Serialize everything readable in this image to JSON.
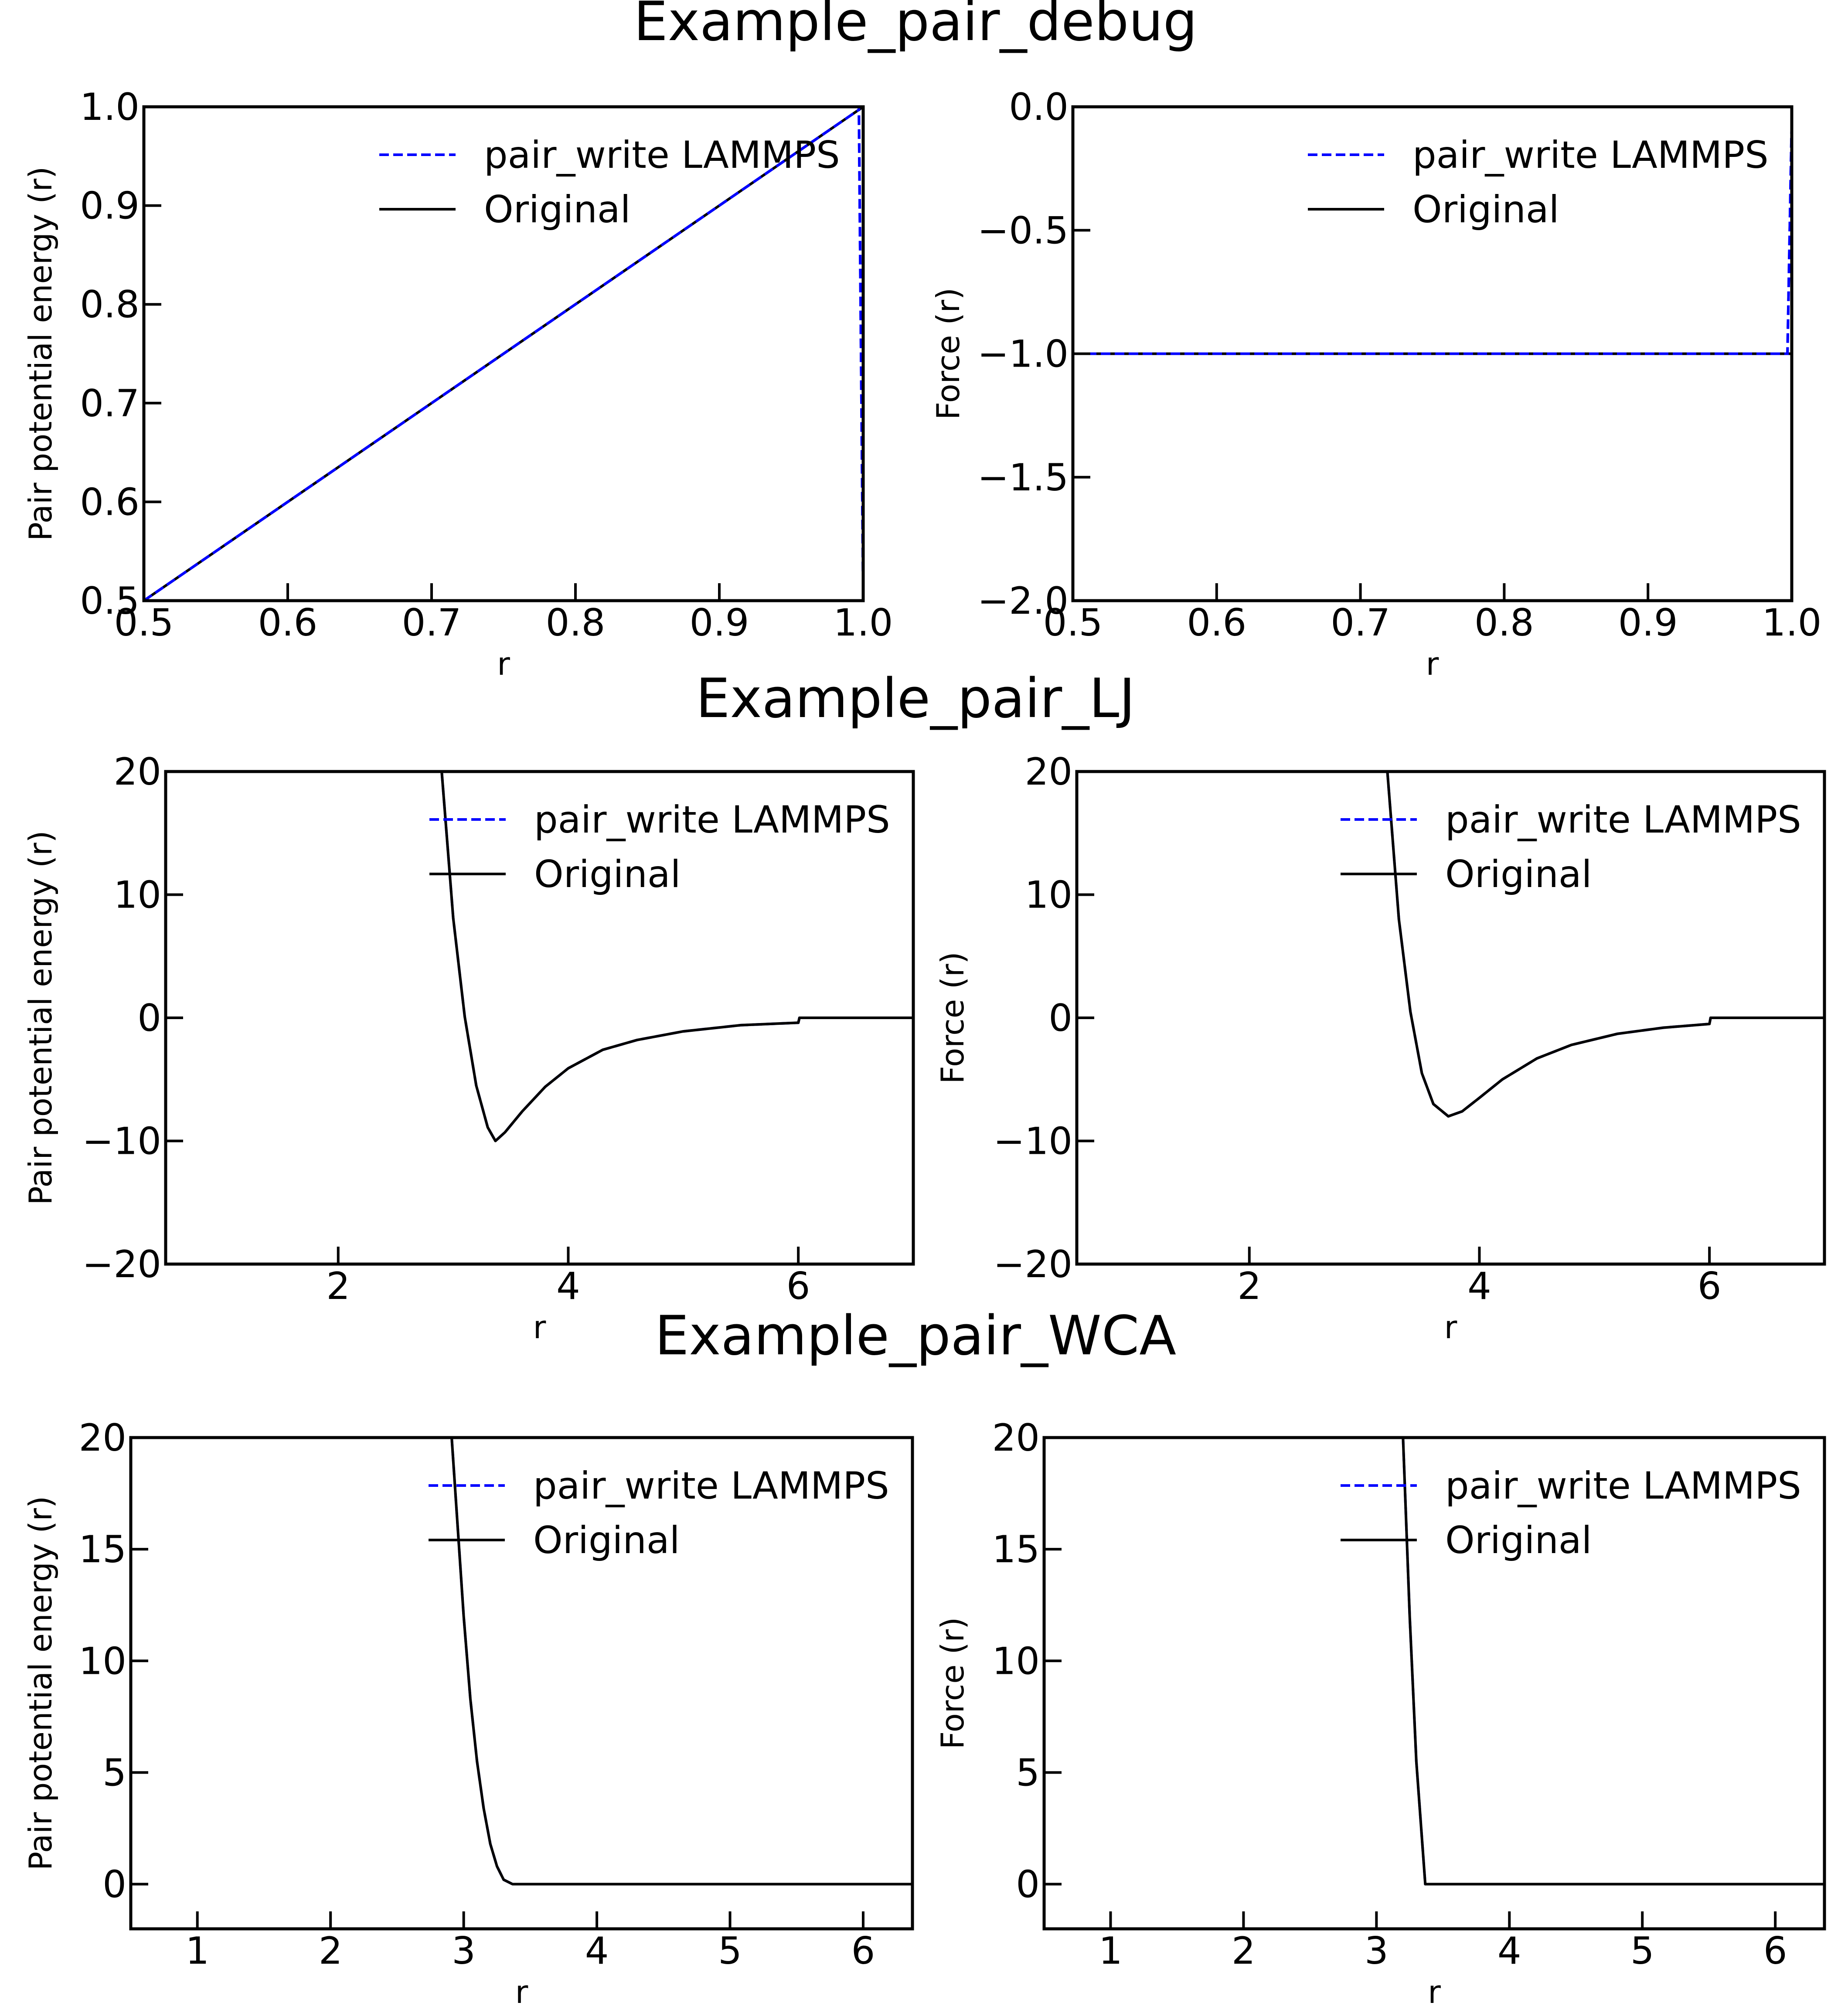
{
  "sections": [
    {
      "title": "Example_pair_debug"
    },
    {
      "title": "Example_pair_LJ"
    },
    {
      "title": "Example_pair_WCA"
    }
  ],
  "colors": {
    "lammps": "#0000ff",
    "original": "#000000",
    "axes": "#000000",
    "background": "#ffffff"
  },
  "chart_data": [
    {
      "id": "debug-energy",
      "type": "line",
      "xlabel": "r",
      "ylabel": "Pair potential energy (r)",
      "xlim": [
        0.5,
        1.0
      ],
      "ylim": [
        0.5,
        1.0
      ],
      "xticks": [
        0.5,
        0.6,
        0.7,
        0.8,
        0.9,
        1.0
      ],
      "xtick_labels": [
        "0.5",
        "0.6",
        "0.7",
        "0.8",
        "0.9",
        "1.0"
      ],
      "yticks": [
        0.5,
        0.6,
        0.7,
        0.8,
        0.9,
        1.0
      ],
      "ytick_labels": [
        "0.5",
        "0.6",
        "0.7",
        "0.8",
        "0.9",
        "1.0"
      ],
      "legend": "top-right",
      "grid": false,
      "series": [
        {
          "name": "pair_write LAMMPS",
          "style": "dashed",
          "color": "#0000ff",
          "x": [
            0.5,
            0.6,
            0.7,
            0.8,
            0.9,
            0.997,
            0.997,
            1.0
          ],
          "y": [
            0.5,
            0.6,
            0.7,
            0.8,
            0.9,
            0.997,
            1.0,
            0.5
          ]
        },
        {
          "name": "Original",
          "style": "solid",
          "color": "#000000",
          "x": [
            0.5,
            1.0,
            1.0
          ],
          "y": [
            0.5,
            1.0,
            0.5
          ]
        }
      ]
    },
    {
      "id": "debug-force",
      "type": "line",
      "xlabel": "r",
      "ylabel": "Force (r)",
      "xlim": [
        0.5,
        1.0
      ],
      "ylim": [
        -2.0,
        0.0
      ],
      "xticks": [
        0.5,
        0.6,
        0.7,
        0.8,
        0.9,
        1.0
      ],
      "xtick_labels": [
        "0.5",
        "0.6",
        "0.7",
        "0.8",
        "0.9",
        "1.0"
      ],
      "yticks": [
        -2.0,
        -1.5,
        -1.0,
        -0.5,
        0.0
      ],
      "ytick_labels": [
        "−2.0",
        "−1.5",
        "−1.0",
        "−0.5",
        "0.0"
      ],
      "legend": "top-right",
      "grid": false,
      "series": [
        {
          "name": "pair_write LAMMPS",
          "style": "dashed",
          "color": "#0000ff",
          "x": [
            0.5,
            0.997,
            1.0
          ],
          "y": [
            -1.0,
            -1.0,
            -0.05
          ]
        },
        {
          "name": "Original",
          "style": "solid",
          "color": "#000000",
          "x": [
            0.5,
            1.0
          ],
          "y": [
            -1.0,
            -1.0
          ]
        }
      ]
    },
    {
      "id": "lj-energy",
      "type": "line",
      "xlabel": "r",
      "ylabel": "Pair potential energy (r)",
      "xlim": [
        0.5,
        7.0
      ],
      "ylim": [
        -20,
        20
      ],
      "xticks": [
        2,
        4,
        6
      ],
      "xtick_labels": [
        "2",
        "4",
        "6"
      ],
      "yticks": [
        -20,
        -10,
        0,
        10,
        20
      ],
      "ytick_labels": [
        "−20",
        "−10",
        "0",
        "10",
        "20"
      ],
      "legend": "top-right",
      "grid": false,
      "series": [
        {
          "name": "pair_write LAMMPS",
          "style": "dashed",
          "color": "#0000ff",
          "x": [
            2.9,
            3.0,
            3.1,
            3.2,
            3.3,
            3.367,
            3.45,
            3.6,
            3.8,
            4.0,
            4.3,
            4.6,
            5.0,
            5.5,
            6.0,
            6.01,
            6.1,
            7.0
          ],
          "y": [
            20.0,
            8.1,
            0.1,
            -5.5,
            -8.9,
            -10.0,
            -9.3,
            -7.6,
            -5.6,
            -4.1,
            -2.6,
            -1.8,
            -1.1,
            -0.6,
            -0.4,
            0.0,
            0.0,
            0.0
          ]
        },
        {
          "name": "Original",
          "style": "solid",
          "color": "#000000",
          "x": [
            2.9,
            3.0,
            3.1,
            3.2,
            3.3,
            3.367,
            3.45,
            3.6,
            3.8,
            4.0,
            4.3,
            4.6,
            5.0,
            5.5,
            6.0,
            6.01,
            6.1,
            7.0
          ],
          "y": [
            20.0,
            8.1,
            0.1,
            -5.5,
            -8.9,
            -10.0,
            -9.3,
            -7.6,
            -5.6,
            -4.1,
            -2.6,
            -1.8,
            -1.1,
            -0.6,
            -0.4,
            0.0,
            0.0,
            0.0
          ]
        }
      ]
    },
    {
      "id": "lj-force",
      "type": "line",
      "xlabel": "r",
      "ylabel": "Force (r)",
      "xlim": [
        0.5,
        7.0
      ],
      "ylim": [
        -20,
        20
      ],
      "xticks": [
        2,
        4,
        6
      ],
      "xtick_labels": [
        "2",
        "4",
        "6"
      ],
      "yticks": [
        -20,
        -10,
        0,
        10,
        20
      ],
      "ytick_labels": [
        "−20",
        "−10",
        "0",
        "10",
        "20"
      ],
      "legend": "top-right",
      "grid": false,
      "series": [
        {
          "name": "pair_write LAMMPS",
          "style": "dashed",
          "color": "#0000ff",
          "x": [
            3.2,
            3.3,
            3.4,
            3.5,
            3.6,
            3.73,
            3.85,
            4.0,
            4.2,
            4.5,
            4.8,
            5.2,
            5.6,
            6.0,
            6.01,
            6.1,
            7.0
          ],
          "y": [
            20.0,
            8.0,
            0.5,
            -4.5,
            -7.0,
            -8.0,
            -7.6,
            -6.5,
            -5.0,
            -3.3,
            -2.2,
            -1.3,
            -0.8,
            -0.5,
            0.0,
            0.0,
            0.0
          ]
        },
        {
          "name": "Original",
          "style": "solid",
          "color": "#000000",
          "x": [
            3.2,
            3.3,
            3.4,
            3.5,
            3.6,
            3.73,
            3.85,
            4.0,
            4.2,
            4.5,
            4.8,
            5.2,
            5.6,
            6.0,
            6.01,
            6.1,
            7.0
          ],
          "y": [
            20.0,
            8.0,
            0.5,
            -4.5,
            -7.0,
            -8.0,
            -7.6,
            -6.5,
            -5.0,
            -3.3,
            -2.2,
            -1.3,
            -0.8,
            -0.5,
            0.0,
            0.0,
            0.0
          ]
        }
      ]
    },
    {
      "id": "wca-energy",
      "type": "line",
      "xlabel": "r",
      "ylabel": "Pair potential energy (r)",
      "xlim": [
        0.5,
        6.37
      ],
      "ylim": [
        -2,
        20
      ],
      "xticks": [
        1,
        2,
        3,
        4,
        5,
        6
      ],
      "xtick_labels": [
        "1",
        "2",
        "3",
        "4",
        "5",
        "6"
      ],
      "yticks": [
        0,
        5,
        10,
        15,
        20
      ],
      "ytick_labels": [
        "0",
        "5",
        "10",
        "15",
        "20"
      ],
      "legend": "top-right",
      "grid": false,
      "series": [
        {
          "name": "pair_write LAMMPS",
          "style": "dashed",
          "color": "#0000ff",
          "x": [
            2.91,
            3.0,
            3.05,
            3.1,
            3.15,
            3.2,
            3.25,
            3.3,
            3.367,
            4.0,
            5.0,
            6.37
          ],
          "y": [
            20.0,
            12.0,
            8.3,
            5.5,
            3.4,
            1.8,
            0.8,
            0.2,
            0.0,
            0.0,
            0.0,
            0.0
          ]
        },
        {
          "name": "Original",
          "style": "solid",
          "color": "#000000",
          "x": [
            2.91,
            3.0,
            3.05,
            3.1,
            3.15,
            3.2,
            3.25,
            3.3,
            3.367,
            4.0,
            5.0,
            6.37
          ],
          "y": [
            20.0,
            12.0,
            8.3,
            5.5,
            3.4,
            1.8,
            0.8,
            0.2,
            0.0,
            0.0,
            0.0,
            0.0
          ]
        }
      ]
    },
    {
      "id": "wca-force",
      "type": "line",
      "xlabel": "r",
      "ylabel": "Force (r)",
      "xlim": [
        0.5,
        6.37
      ],
      "ylim": [
        -2,
        20
      ],
      "xticks": [
        1,
        2,
        3,
        4,
        5,
        6
      ],
      "xtick_labels": [
        "1",
        "2",
        "3",
        "4",
        "5",
        "6"
      ],
      "yticks": [
        0,
        5,
        10,
        15,
        20
      ],
      "ytick_labels": [
        "0",
        "5",
        "10",
        "15",
        "20"
      ],
      "legend": "top-right",
      "grid": false,
      "series": [
        {
          "name": "pair_write LAMMPS",
          "style": "dashed",
          "color": "#0000ff",
          "x": [
            3.2,
            3.25,
            3.3,
            3.367,
            4.0,
            5.0,
            6.37
          ],
          "y": [
            20.0,
            12.0,
            5.5,
            0.0,
            0.0,
            0.0,
            0.0
          ]
        },
        {
          "name": "Original",
          "style": "solid",
          "color": "#000000",
          "x": [
            3.2,
            3.25,
            3.3,
            3.367,
            4.0,
            5.0,
            6.37
          ],
          "y": [
            20.0,
            12.0,
            5.5,
            0.0,
            0.0,
            0.0,
            0.0
          ]
        }
      ]
    }
  ]
}
